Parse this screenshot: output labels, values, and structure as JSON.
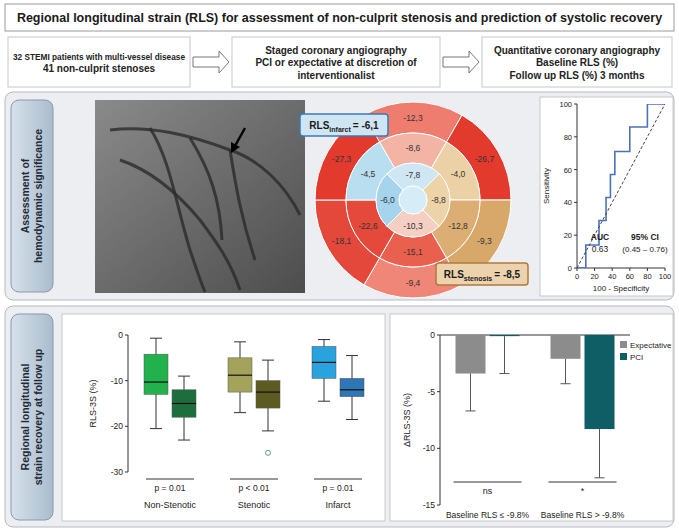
{
  "header": {
    "title": "Regional longitudinal strain (RLS) for assessment of non-culprit stenosis and prediction of systolic recovery"
  },
  "flow": {
    "steps": [
      [
        "32 STEMI patients with multi-vessel disease",
        "41 non-culprit stenoses"
      ],
      [
        "Staged coronary angiography",
        "PCI or expectative at discretion of",
        "interventionalist"
      ],
      [
        "Quantitative coronary angiography",
        "Baseline RLS (%)",
        "Follow up RLS (%) 3 months"
      ]
    ]
  },
  "panels": {
    "middle_label": [
      "Assessment of",
      "hemodynamic significance"
    ],
    "bottom_label": [
      "Regional longitudinal",
      "strain recovery at follow up"
    ]
  },
  "bullseye": {
    "basal": [
      {
        "label": "-12,3",
        "color": "#ee7d70"
      },
      {
        "label": "-26,7",
        "color": "#e23b2e"
      },
      {
        "label": "-9,3",
        "color": "#d8a86a"
      },
      {
        "label": "-9,4",
        "color": "#ef8677"
      },
      {
        "label": "-18,1",
        "color": "#e4483a"
      },
      {
        "label": "-27,3",
        "color": "#e23b2e"
      }
    ],
    "mid": [
      {
        "label": "-8,6",
        "color": "#f3b3a5"
      },
      {
        "label": "-4,0",
        "color": "#ecd1a6"
      },
      {
        "label": "-12,8",
        "color": "#dcae73"
      },
      {
        "label": "-15,1",
        "color": "#e9604f"
      },
      {
        "label": "-22,6",
        "color": "#e4493b"
      },
      {
        "label": "-4,5",
        "color": "#b9def0"
      }
    ],
    "apical": [
      {
        "label": "-7,8",
        "color": "#cfe7f2"
      },
      {
        "label": "-8,8",
        "color": "#ecd3a8"
      },
      {
        "label": "-10,3",
        "color": "#f6cfc4"
      },
      {
        "label": "-6,0",
        "color": "#a6d4ec"
      }
    ],
    "apex": {
      "color": "#d6ecf6"
    },
    "infarct_box": {
      "main": "RLS",
      "sub": "infarct",
      "value": "= -6,1",
      "color": "#cfe6f2"
    },
    "stenosis_box": {
      "main": "RLS",
      "sub": "stenosis",
      "value": "= -8,5",
      "color": "#ecd3ad"
    }
  },
  "chart_data": [
    {
      "type": "line",
      "x_label": "100 - Specificity",
      "y_label": "Sensitivity",
      "xlim": [
        0,
        100
      ],
      "ylim": [
        0,
        100
      ],
      "xticks": [
        0,
        20,
        40,
        60,
        80,
        100
      ],
      "yticks": [
        0,
        20,
        40,
        60,
        80,
        100
      ],
      "series": [
        {
          "x": [
            0,
            10,
            10,
            25,
            25,
            33,
            33,
            38,
            38,
            43,
            43,
            60,
            60,
            80,
            80,
            100
          ],
          "values": [
            0,
            0,
            14,
            14,
            29,
            29,
            43,
            43,
            57,
            57,
            71,
            71,
            86,
            86,
            100,
            100
          ],
          "color": "#4a72b8",
          "line_style": "solid"
        },
        {
          "x": [
            0,
            100
          ],
          "values": [
            0,
            100
          ],
          "color": "#444444",
          "line_style": "dashed"
        }
      ],
      "annotations": [
        "AUC",
        "0.63",
        "95% CI",
        "(0.45 – 0.76)"
      ]
    },
    {
      "type": "box",
      "y_label": "RLS-3S (%)",
      "categories": [
        "Non-Stenotic",
        "Stenotic",
        "Infarct"
      ],
      "ylim": [
        -30,
        0
      ],
      "yticks": [
        -30,
        -20,
        -10,
        0
      ],
      "series": [
        {
          "colors": [
            "#22b14c",
            "#a3a35b",
            "#29a3dd"
          ],
          "min": [
            -20.5,
            -17,
            -14.5
          ],
          "q1": [
            -13,
            -12.5,
            -9.5
          ],
          "median": [
            -10.3,
            -8.8,
            -6
          ],
          "q3": [
            -4.2,
            -5,
            -2.5
          ],
          "max": [
            -0.7,
            -1.5,
            -1
          ],
          "outliers": [
            [],
            [],
            []
          ]
        },
        {
          "colors": [
            "#1c6e3d",
            "#5c5c22",
            "#2e76b6"
          ],
          "min": [
            -23,
            -21,
            -18.5
          ],
          "q1": [
            -18,
            -16,
            -13.5
          ],
          "median": [
            -15,
            -12.5,
            -12
          ],
          "q3": [
            -12,
            -10,
            -9.5
          ],
          "max": [
            -9,
            -5.5,
            -4.5
          ],
          "outliers": [
            [],
            [
              -25.8
            ],
            []
          ]
        }
      ],
      "annotations": [
        "p = 0.01",
        "p < 0.01",
        "p = 0.01"
      ]
    },
    {
      "type": "bar",
      "y_label": "ΔRLS-3S (%)",
      "categories": [
        "Baseline RLS ≤ -9.8%",
        "Baseline RLS > -9.8%"
      ],
      "ylim": [
        -15,
        0
      ],
      "yticks": [
        -15,
        -10,
        -5,
        0
      ],
      "legend": "top-right",
      "series": [
        {
          "name": "Expectative",
          "color": "#8c8c8c",
          "values": [
            -3.4,
            -2.1
          ],
          "errors": [
            3.3,
            2.2
          ]
        },
        {
          "name": "PCI",
          "color": "#0f5e66",
          "values": [
            -0.1,
            -8.3
          ],
          "errors": [
            3.3,
            4.3
          ]
        }
      ],
      "annotations": [
        "ns",
        "*"
      ]
    }
  ]
}
